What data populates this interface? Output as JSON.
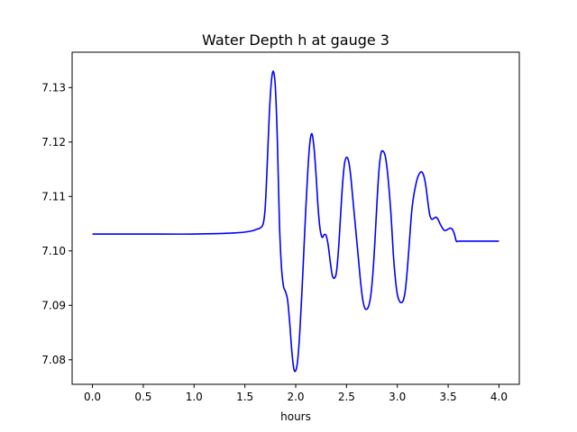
{
  "chart_data": {
    "type": "line",
    "title": "Water Depth h at gauge 3",
    "xlabel": "hours",
    "ylabel": "",
    "xlim": [
      -0.2,
      4.2
    ],
    "ylim": [
      7.0755,
      7.1365
    ],
    "xticks": [
      0.0,
      0.5,
      1.0,
      1.5,
      2.0,
      2.5,
      3.0,
      3.5,
      4.0
    ],
    "xtick_labels": [
      "0.0",
      "0.5",
      "1.0",
      "1.5",
      "2.0",
      "2.5",
      "3.0",
      "3.5",
      "4.0"
    ],
    "yticks": [
      7.08,
      7.09,
      7.1,
      7.11,
      7.12,
      7.13
    ],
    "ytick_labels": [
      "7.08",
      "7.09",
      "7.10",
      "7.11",
      "7.12",
      "7.13"
    ],
    "grid": false,
    "series": [
      {
        "color": "#0000ff",
        "x": [
          0.0,
          0.5,
          1.0,
          1.4,
          1.55,
          1.62,
          1.65,
          1.68,
          1.7,
          1.72,
          1.74,
          1.76,
          1.78,
          1.8,
          1.82,
          1.84,
          1.86,
          1.88,
          1.9,
          1.92,
          1.94,
          1.96,
          1.98,
          2.0,
          2.02,
          2.04,
          2.06,
          2.08,
          2.1,
          2.12,
          2.14,
          2.16,
          2.18,
          2.2,
          2.22,
          2.24,
          2.26,
          2.28,
          2.3,
          2.32,
          2.34,
          2.36,
          2.38,
          2.4,
          2.42,
          2.44,
          2.46,
          2.48,
          2.5,
          2.52,
          2.54,
          2.56,
          2.58,
          2.6,
          2.62,
          2.64,
          2.66,
          2.68,
          2.7,
          2.72,
          2.74,
          2.76,
          2.78,
          2.8,
          2.82,
          2.84,
          2.86,
          2.88,
          2.9,
          2.92,
          2.94,
          2.96,
          2.98,
          3.0,
          3.02,
          3.04,
          3.06,
          3.08,
          3.1,
          3.12,
          3.14,
          3.16,
          3.18,
          3.2,
          3.22,
          3.24,
          3.26,
          3.28,
          3.3,
          3.32,
          3.34,
          3.36,
          3.38,
          3.4,
          3.42,
          3.44,
          3.46,
          3.48,
          3.5,
          3.52,
          3.54,
          3.56,
          3.58,
          3.6,
          3.62,
          3.64,
          3.66,
          3.68,
          3.7,
          3.72,
          3.74,
          3.76,
          3.78,
          3.8,
          3.82,
          3.84,
          3.86,
          3.88,
          3.9,
          3.92,
          3.94,
          3.96,
          3.98,
          4.0
        ],
        "y": [
          7.1031,
          7.1031,
          7.1031,
          7.1033,
          7.1036,
          7.104,
          7.1042,
          7.105,
          7.108,
          7.116,
          7.125,
          7.131,
          7.133,
          7.13,
          7.12,
          7.105,
          7.097,
          7.0935,
          7.0925,
          7.091,
          7.087,
          7.082,
          7.0785,
          7.078,
          7.08,
          7.085,
          7.092,
          7.1,
          7.108,
          7.115,
          7.12,
          7.1215,
          7.119,
          7.114,
          7.108,
          7.104,
          7.1025,
          7.103,
          7.1028,
          7.101,
          7.098,
          7.0955,
          7.095,
          7.096,
          7.1,
          7.106,
          7.112,
          7.116,
          7.1172,
          7.1165,
          7.114,
          7.11,
          7.106,
          7.102,
          7.098,
          7.094,
          7.091,
          7.0895,
          7.0893,
          7.09,
          7.092,
          7.096,
          7.102,
          7.109,
          7.115,
          7.118,
          7.1183,
          7.1175,
          7.115,
          7.111,
          7.106,
          7.0995,
          7.095,
          7.092,
          7.0908,
          7.0905,
          7.091,
          7.093,
          7.097,
          7.102,
          7.107,
          7.11,
          7.112,
          7.1135,
          7.1143,
          7.1145,
          7.1138,
          7.112,
          7.109,
          7.1065,
          7.1058,
          7.106,
          7.1062,
          7.1058,
          7.105,
          7.1043,
          7.1038,
          7.1038,
          7.104,
          7.1042,
          7.104,
          7.1032,
          7.1018,
          7.1018,
          7.1018,
          7.1018,
          7.1018,
          7.1018,
          7.1018,
          7.1018,
          7.1018,
          7.1018,
          7.1018,
          7.1018,
          7.1018,
          7.1018,
          7.1018,
          7.1018,
          7.1018,
          7.1018,
          7.1018,
          7.1018,
          7.1018,
          7.1018
        ]
      }
    ]
  }
}
